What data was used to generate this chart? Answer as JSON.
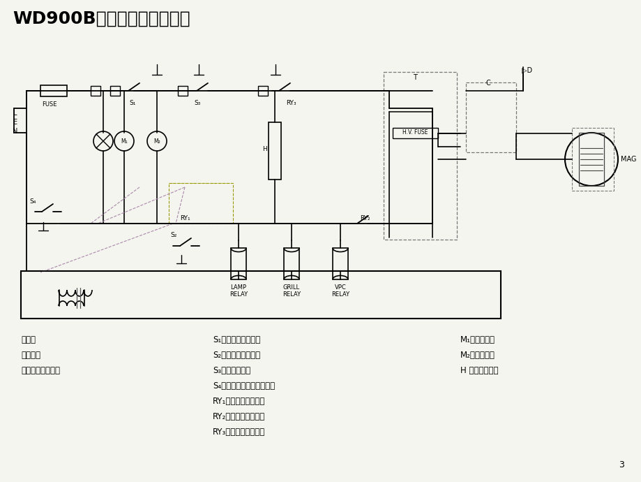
{
  "title": "WD900B型微波炉电原理图：",
  "bg_color": "#f5f5f0",
  "page_number": "3",
  "legend_left": [
    "条件：",
    "炉门：关",
    "薄膜开关：按取消"
  ],
  "legend_mid": [
    "S₁：门第一联锁开关",
    "S₂：门第二联锁开关",
    "S₃：门监控开关",
    "S₄：磁控管自复位热断路器",
    "RY₁：炉灯控制继电器",
    "RY₂：微波控制继电器",
    "RY₃：烧烤控制继电器"
  ],
  "legend_right": [
    "M₁：风扇电机",
    "M₂：转盘电机",
    "H ：石英发热管"
  ]
}
